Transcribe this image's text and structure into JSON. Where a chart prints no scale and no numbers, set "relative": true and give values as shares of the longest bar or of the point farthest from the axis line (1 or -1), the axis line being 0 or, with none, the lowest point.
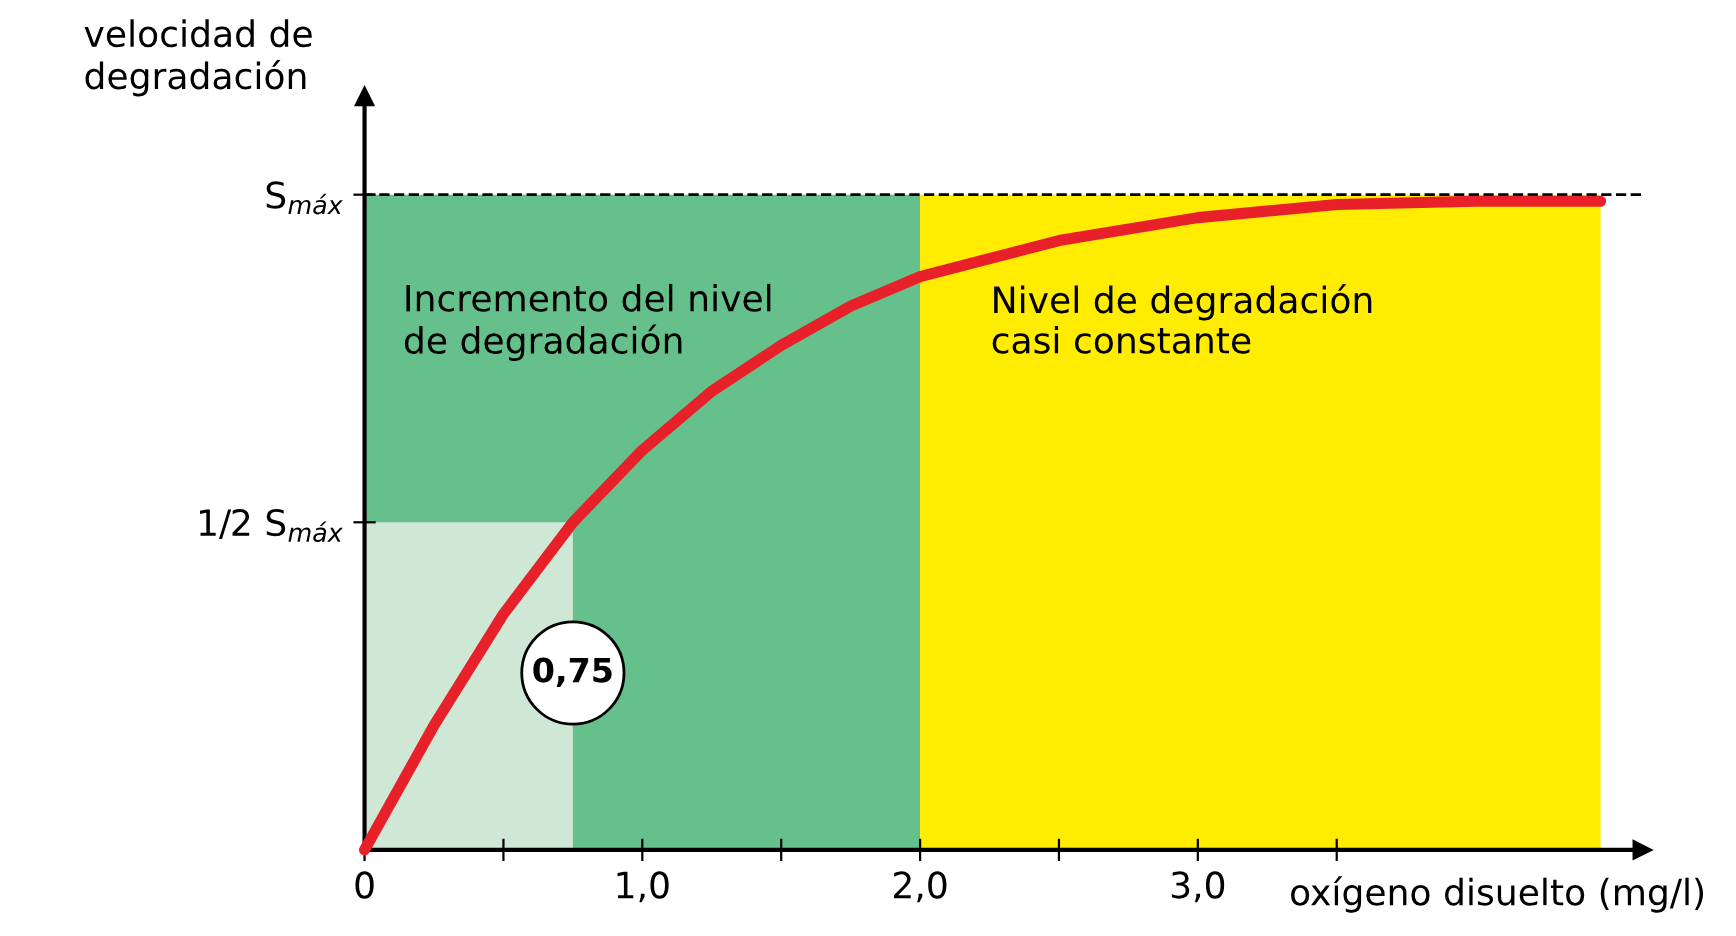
{
  "chart_data": {
    "type": "line",
    "ylabel": "velocidad de\ndegradación",
    "xlabel": "oxígeno disuelto (mg/l)",
    "series": [
      {
        "type": "area",
        "color": "#66c08c",
        "x": [
          0,
          2
        ],
        "values": [
          1,
          1
        ]
      },
      {
        "type": "area",
        "color": "#ffec00",
        "x": [
          2,
          4.45
        ],
        "values": [
          1,
          1
        ]
      },
      {
        "type": "area",
        "color": "#cfe8d6",
        "x": [
          0,
          0.75
        ],
        "values": [
          0.5,
          0.5
        ]
      },
      {
        "color": "#e8202a",
        "x": [
          0,
          0.25,
          0.5,
          0.75,
          1.0,
          1.25,
          1.5,
          1.75,
          2.0,
          2.5,
          3.0,
          3.5,
          4.0,
          4.45
        ],
        "values": [
          0,
          0.19,
          0.36,
          0.5,
          0.61,
          0.7,
          0.77,
          0.83,
          0.875,
          0.93,
          0.965,
          0.985,
          0.99,
          0.99
        ]
      }
    ],
    "xlim": [
      0,
      4.6
    ],
    "relative": true,
    "xticks": [
      {
        "value": 0,
        "label": "0"
      },
      {
        "value": 0.5,
        "label": null
      },
      {
        "value": 1,
        "label": "1,0"
      },
      {
        "value": 1.5,
        "label": null
      },
      {
        "value": 2,
        "label": "2,0"
      },
      {
        "value": 2.5,
        "label": null
      },
      {
        "value": 3,
        "label": "3,0"
      },
      {
        "value": 3.5,
        "label": null
      }
    ],
    "ref_lines": [
      {
        "axis": "y",
        "value": 0.5,
        "label": "1/2 S$_{máx}$"
      },
      {
        "axis": "y",
        "value": 1,
        "label": "S$_{máx}$",
        "line_style": "dashed"
      }
    ],
    "annotations": [
      "Incremento del nivel\nde degradación",
      "Nivel de degradación\ncasi constante",
      {
        "text": "0,75",
        "x": 0.75,
        "y": 0.27
      }
    ],
    "grid": false,
    "legend": false
  }
}
